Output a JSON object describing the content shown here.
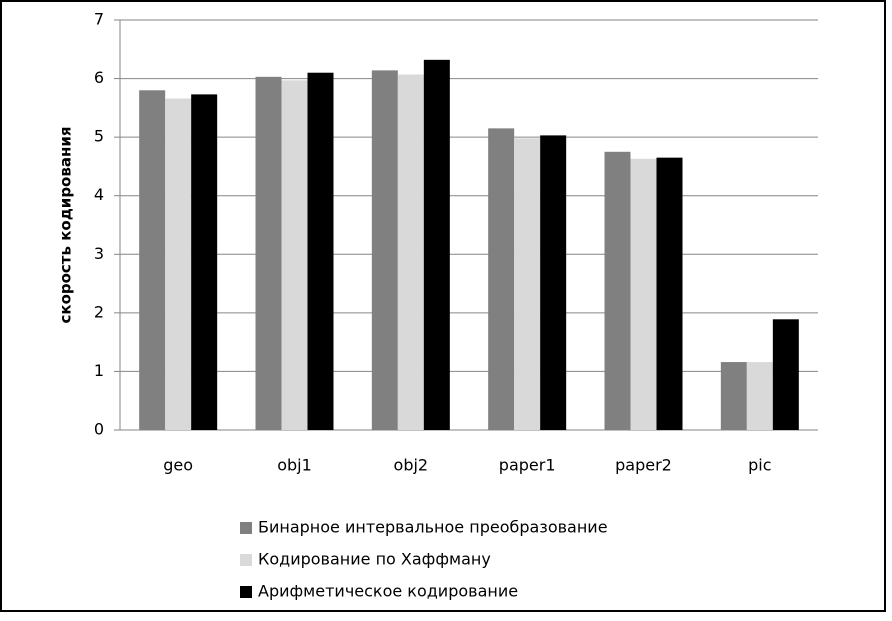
{
  "chart_data": {
    "type": "bar",
    "y_label": "скорость кодирования",
    "categories": [
      "geo",
      "obj1",
      "obj2",
      "paper1",
      "paper2",
      "pic"
    ],
    "series": [
      {
        "name": "Бинарное интервальное преобразование",
        "color": "#808080",
        "values": [
          5.8,
          6.03,
          6.14,
          5.15,
          4.75,
          1.16
        ]
      },
      {
        "name": "Кодирование по Хаффману",
        "color": "#d9d9d9",
        "values": [
          5.66,
          5.97,
          6.07,
          4.98,
          4.63,
          1.16
        ]
      },
      {
        "name": "Арифметическое кодирование",
        "color": "#000000",
        "values": [
          5.73,
          6.1,
          6.32,
          5.03,
          4.65,
          1.89
        ]
      }
    ],
    "ylim": [
      0,
      7
    ],
    "yticks": [
      0,
      1,
      2,
      3,
      4,
      5,
      6,
      7
    ],
    "grid": true,
    "legend": "bottom"
  }
}
